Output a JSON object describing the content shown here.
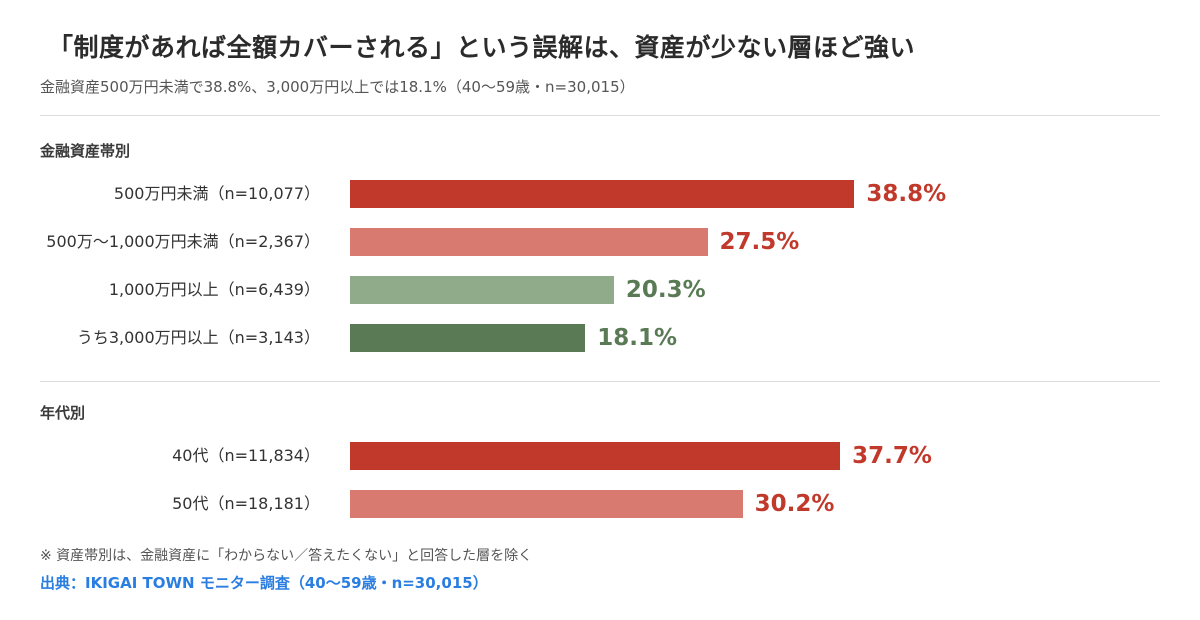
{
  "title": "「制度があれば全額カバーされる」という誤解は、資産が少ない層ほど強い",
  "subtitle": "金融資産500万円未満で38.8%、3,000万円以上では18.1%（40〜59歳・n=30,015）",
  "colors": {
    "red_dark": "#c0392b",
    "red_light": "#d97a70",
    "green_light": "#8fab8a",
    "green_dark": "#5a7a55"
  },
  "chart_data": [
    {
      "type": "bar",
      "orientation": "horizontal",
      "section_label": "金融資産帯別",
      "categories": [
        "500万円未満（n=10,077）",
        "500万〜1,000万円未満（n=2,367）",
        "1,000万円以上（n=6,439）",
        "うち3,000万円以上（n=3,143）"
      ],
      "values": [
        38.8,
        27.5,
        20.3,
        18.1
      ],
      "value_labels": [
        "38.8%",
        "27.5%",
        "20.3%",
        "18.1%"
      ],
      "bar_colors": [
        "#c0392b",
        "#d97a70",
        "#8fab8a",
        "#5a7a55"
      ],
      "label_colors": [
        "#c0392b",
        "#c0392b",
        "#5a7a55",
        "#5a7a55"
      ],
      "unit": "%",
      "xlim": [
        0,
        40
      ]
    },
    {
      "type": "bar",
      "orientation": "horizontal",
      "section_label": "年代別",
      "categories": [
        "40代（n=11,834）",
        "50代（n=18,181）"
      ],
      "values": [
        37.7,
        30.2
      ],
      "value_labels": [
        "37.7%",
        "30.2%"
      ],
      "bar_colors": [
        "#c0392b",
        "#d97a70"
      ],
      "label_colors": [
        "#c0392b",
        "#c0392b"
      ],
      "unit": "%",
      "xlim": [
        0,
        40
      ]
    }
  ],
  "footnote": "※ 資産帯別は、金融資産に「わからない／答えたくない」と回答した層を除く",
  "source": "出典：IKIGAI TOWN モニター調査（40〜59歳・n=30,015）"
}
